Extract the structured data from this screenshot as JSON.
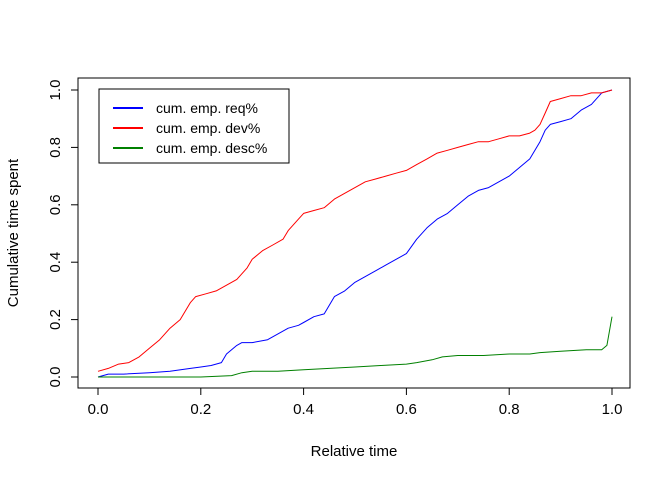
{
  "chart_data": {
    "type": "line",
    "title": "",
    "xlabel": "Relative time",
    "ylabel": "Cumulative time spent",
    "xlim": [
      0.0,
      1.0
    ],
    "ylim": [
      0.0,
      1.0
    ],
    "xticks": [
      "0.0",
      "0.2",
      "0.4",
      "0.6",
      "0.8",
      "1.0"
    ],
    "yticks": [
      "0.0",
      "0.2",
      "0.4",
      "0.6",
      "0.8",
      "1.0"
    ],
    "grid": false,
    "legend_position": "top-left",
    "series": [
      {
        "name": "cum. emp. req%",
        "color": "#0000ff",
        "x": [
          0.0,
          0.02,
          0.05,
          0.1,
          0.14,
          0.18,
          0.2,
          0.22,
          0.24,
          0.25,
          0.27,
          0.28,
          0.3,
          0.33,
          0.35,
          0.37,
          0.39,
          0.4,
          0.42,
          0.44,
          0.45,
          0.46,
          0.48,
          0.5,
          0.52,
          0.54,
          0.56,
          0.58,
          0.6,
          0.62,
          0.64,
          0.66,
          0.68,
          0.7,
          0.72,
          0.74,
          0.76,
          0.78,
          0.8,
          0.82,
          0.84,
          0.86,
          0.87,
          0.88,
          0.9,
          0.92,
          0.94,
          0.96,
          0.98,
          1.0
        ],
        "y": [
          0.0,
          0.01,
          0.01,
          0.015,
          0.02,
          0.03,
          0.035,
          0.04,
          0.05,
          0.08,
          0.11,
          0.12,
          0.12,
          0.13,
          0.15,
          0.17,
          0.18,
          0.19,
          0.21,
          0.22,
          0.25,
          0.28,
          0.3,
          0.33,
          0.35,
          0.37,
          0.39,
          0.41,
          0.43,
          0.48,
          0.52,
          0.55,
          0.57,
          0.6,
          0.63,
          0.65,
          0.66,
          0.68,
          0.7,
          0.73,
          0.76,
          0.82,
          0.86,
          0.88,
          0.89,
          0.9,
          0.93,
          0.95,
          0.99,
          1.0
        ]
      },
      {
        "name": "cum. emp. dev%",
        "color": "#ff0000",
        "x": [
          0.0,
          0.02,
          0.04,
          0.06,
          0.08,
          0.1,
          0.12,
          0.14,
          0.16,
          0.18,
          0.19,
          0.21,
          0.23,
          0.25,
          0.27,
          0.29,
          0.3,
          0.32,
          0.34,
          0.36,
          0.37,
          0.39,
          0.4,
          0.42,
          0.44,
          0.46,
          0.48,
          0.5,
          0.52,
          0.54,
          0.56,
          0.58,
          0.6,
          0.62,
          0.64,
          0.66,
          0.68,
          0.7,
          0.72,
          0.74,
          0.76,
          0.78,
          0.8,
          0.82,
          0.84,
          0.85,
          0.86,
          0.87,
          0.88,
          0.9,
          0.92,
          0.94,
          0.96,
          0.98,
          1.0
        ],
        "y": [
          0.02,
          0.03,
          0.045,
          0.05,
          0.07,
          0.1,
          0.13,
          0.17,
          0.2,
          0.26,
          0.28,
          0.29,
          0.3,
          0.32,
          0.34,
          0.38,
          0.41,
          0.44,
          0.46,
          0.48,
          0.51,
          0.55,
          0.57,
          0.58,
          0.59,
          0.62,
          0.64,
          0.66,
          0.68,
          0.69,
          0.7,
          0.71,
          0.72,
          0.74,
          0.76,
          0.78,
          0.79,
          0.8,
          0.81,
          0.82,
          0.82,
          0.83,
          0.84,
          0.84,
          0.85,
          0.86,
          0.88,
          0.92,
          0.96,
          0.97,
          0.98,
          0.98,
          0.99,
          0.99,
          1.0
        ]
      },
      {
        "name": "cum. emp. desc%",
        "color": "#008000",
        "x": [
          0.0,
          0.05,
          0.1,
          0.15,
          0.2,
          0.26,
          0.28,
          0.3,
          0.35,
          0.4,
          0.45,
          0.5,
          0.55,
          0.6,
          0.62,
          0.65,
          0.67,
          0.7,
          0.75,
          0.8,
          0.84,
          0.86,
          0.9,
          0.95,
          0.98,
          0.99,
          1.0
        ],
        "y": [
          0.0,
          0.0,
          0.0,
          0.0,
          0.0,
          0.005,
          0.015,
          0.02,
          0.02,
          0.025,
          0.03,
          0.035,
          0.04,
          0.045,
          0.05,
          0.06,
          0.07,
          0.075,
          0.075,
          0.08,
          0.08,
          0.085,
          0.09,
          0.095,
          0.095,
          0.11,
          0.21
        ]
      }
    ]
  }
}
